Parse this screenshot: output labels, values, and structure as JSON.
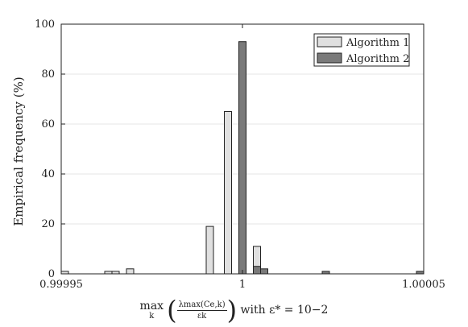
{
  "chart_data": {
    "type": "bar",
    "ylabel": "Empirical frequency (%)",
    "ylim": [
      0,
      100
    ],
    "yticks": [
      "0",
      "20",
      "40",
      "60",
      "80",
      "100"
    ],
    "xlim": [
      0.99995,
      1.00005
    ],
    "xticks": [
      {
        "value": 0.99995,
        "label": "0.99995"
      },
      {
        "value": 1.0,
        "label": "1"
      },
      {
        "value": 1.00005,
        "label": "1.00005"
      }
    ],
    "xlabel": {
      "max_word": "max",
      "max_sub": "k",
      "numerator": "λmax(Ce,k)",
      "denominator": "εk",
      "rest": "with ε* = 10−2"
    },
    "grid": "horizontal",
    "legend_position": "top-right",
    "bin_width": 2e-06,
    "series": [
      {
        "name": "Algorithm 1",
        "color": "#e0e0e0",
        "bins": [
          {
            "x": 0.99995,
            "value": 1
          },
          {
            "x": 0.999956,
            "value": 0
          },
          {
            "x": 0.999958,
            "value": 0
          },
          {
            "x": 0.999962,
            "value": 1
          },
          {
            "x": 0.999964,
            "value": 1
          },
          {
            "x": 0.999968,
            "value": 2
          },
          {
            "x": 0.99999,
            "value": 19
          },
          {
            "x": 0.999995,
            "value": 65
          },
          {
            "x": 1.000003,
            "value": 11
          }
        ]
      },
      {
        "name": "Algorithm 2",
        "color": "#7a7a7a",
        "bins": [
          {
            "x": 0.999999,
            "value": 93
          },
          {
            "x": 1.000003,
            "value": 3
          },
          {
            "x": 1.000005,
            "value": 2
          },
          {
            "x": 1.000022,
            "value": 1
          },
          {
            "x": 1.000048,
            "value": 1
          }
        ]
      }
    ]
  }
}
